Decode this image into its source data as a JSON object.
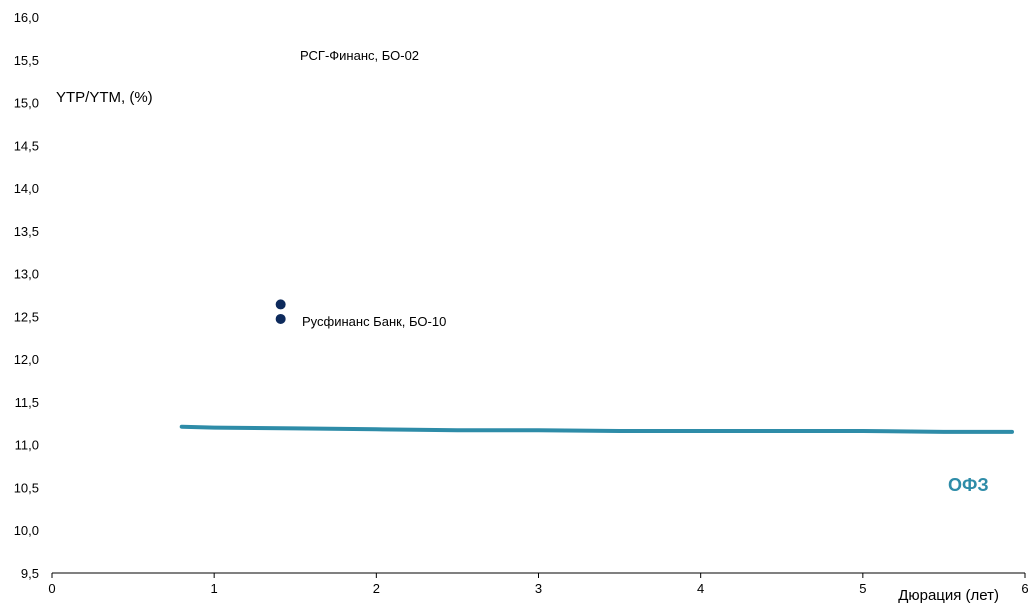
{
  "chart_data": {
    "type": "scatter",
    "title": "",
    "ylabel": "YTP/YTM, (%)",
    "xlabel": "Дюрация (лет)",
    "xlim": [
      0,
      6
    ],
    "ylim": [
      9.5,
      16.0
    ],
    "x_ticks": [
      0,
      1,
      2,
      3,
      4,
      5,
      6
    ],
    "y_ticks": [
      9.5,
      10.0,
      10.5,
      11.0,
      11.5,
      12.0,
      12.5,
      13.0,
      13.5,
      14.0,
      14.5,
      15.0,
      15.5,
      16.0
    ],
    "y_tick_labels": [
      "9,5",
      "10,0",
      "10,5",
      "11,0",
      "11,5",
      "12,0",
      "12,5",
      "13,0",
      "13,5",
      "14,0",
      "14,5",
      "15,0",
      "15,5",
      "16,0"
    ],
    "x_tick_labels": [
      "0",
      "1",
      "2",
      "3",
      "4",
      "5",
      "6"
    ],
    "grid": false,
    "series": [
      {
        "name": "ОФЗ",
        "kind": "line",
        "color": "#2e8ca8",
        "x": [
          0.8,
          1.0,
          1.5,
          2.0,
          2.5,
          3.0,
          3.5,
          4.0,
          4.5,
          5.0,
          5.5,
          5.92
        ],
        "y": [
          11.21,
          11.2,
          11.19,
          11.18,
          11.17,
          11.17,
          11.16,
          11.16,
          11.16,
          11.16,
          11.15,
          11.15
        ]
      },
      {
        "kind": "points",
        "color": "#0d2a5c",
        "x": [
          1.41,
          1.41
        ],
        "y": [
          12.64,
          12.47
        ]
      }
    ],
    "annotations": [
      {
        "text": "РСГ-Финанс, БО-02"
      },
      {
        "text": "Русфинанс Банк, БО-10"
      }
    ]
  }
}
